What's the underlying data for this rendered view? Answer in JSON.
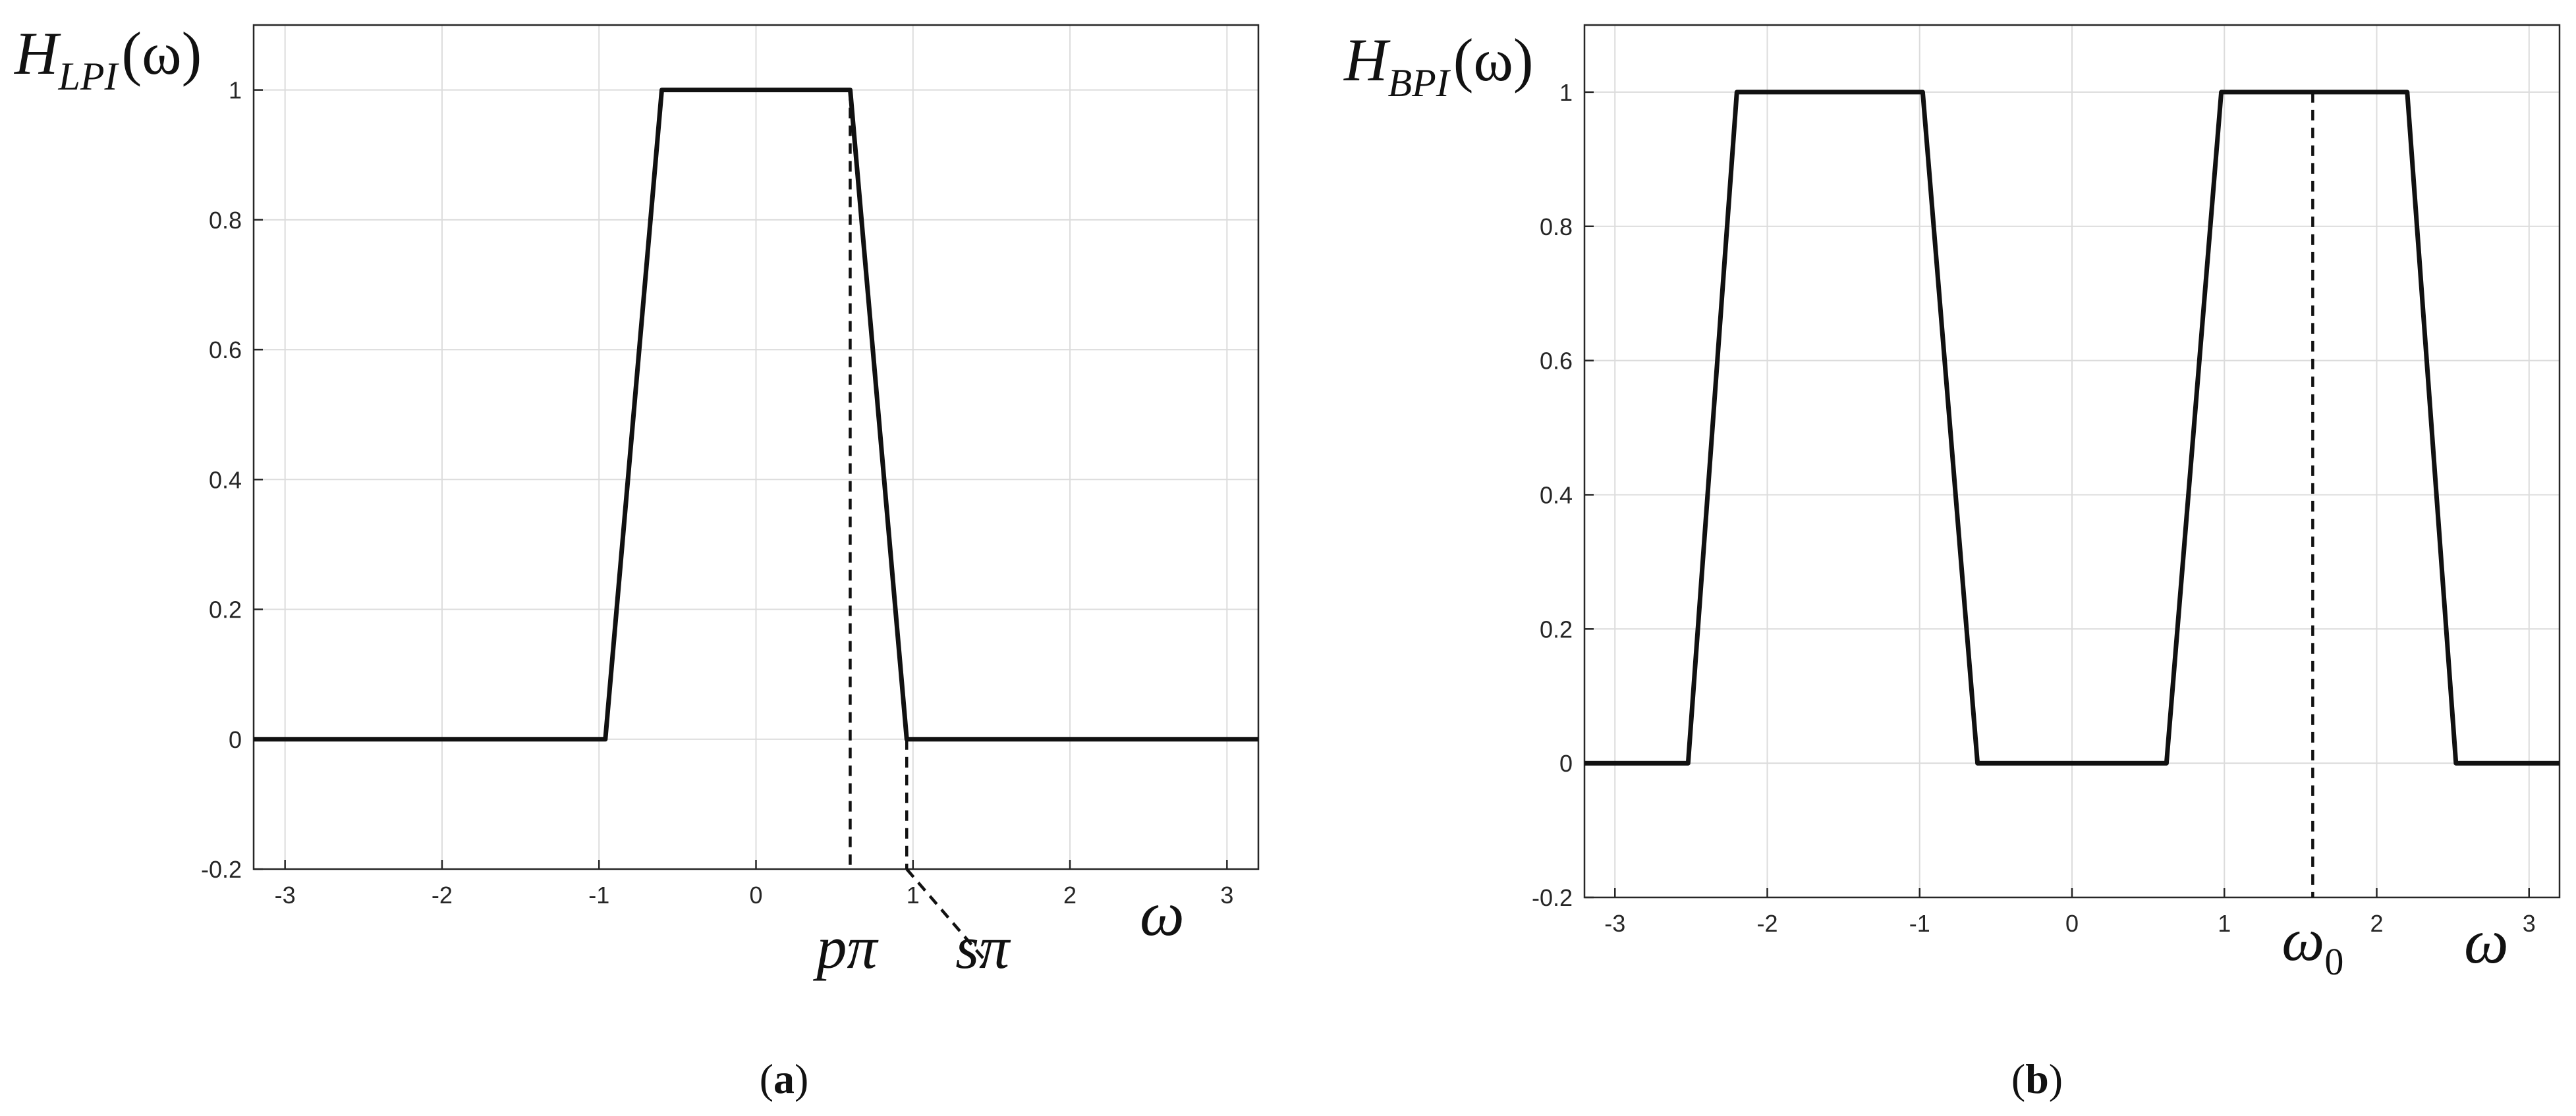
{
  "chart_data": [
    {
      "type": "line",
      "panel_label": "a",
      "ylabel": {
        "main": "H",
        "sub": "LPI",
        "arg": "(ω)"
      },
      "xlabel": "ω",
      "xlim": [
        -3.2,
        3.2
      ],
      "ylim": [
        -0.2,
        1.1
      ],
      "xticks": [
        -3,
        -2,
        -1,
        0,
        1,
        2,
        3
      ],
      "yticks": [
        -0.2,
        0,
        0.2,
        0.4,
        0.6,
        0.8,
        1
      ],
      "grid": true,
      "series": [
        {
          "x": [
            -3.2,
            -0.96,
            -0.6,
            0.6,
            0.96,
            3.2
          ],
          "y": [
            0,
            0,
            1,
            1,
            0,
            0
          ]
        }
      ],
      "annotations": [
        {
          "text": "pπ",
          "x": 0.6,
          "y_from": 1,
          "y_to": -0.2
        },
        {
          "text": "sπ",
          "x": 0.96,
          "y_from": 0,
          "y_to": -0.2
        }
      ]
    },
    {
      "type": "line",
      "panel_label": "b",
      "ylabel": {
        "main": "H",
        "sub": "BPI",
        "arg": "(ω)"
      },
      "xlabel": "ω",
      "xlim": [
        -3.2,
        3.2
      ],
      "ylim": [
        -0.2,
        1.1
      ],
      "xticks": [
        -3,
        -2,
        -1,
        0,
        1,
        2,
        3
      ],
      "yticks": [
        -0.2,
        0,
        0.2,
        0.4,
        0.6,
        0.8,
        1
      ],
      "grid": true,
      "series": [
        {
          "x": [
            -3.2,
            -2.52,
            -2.2,
            -0.98,
            -0.62,
            0.62,
            0.98,
            2.2,
            2.52,
            3.2
          ],
          "y": [
            0,
            0,
            1,
            1,
            0,
            0,
            1,
            1,
            0,
            0
          ]
        }
      ],
      "annotations": [
        {
          "text": "ω",
          "sub": "0",
          "x": 1.58,
          "y_from": 1,
          "y_to": -0.2
        }
      ]
    }
  ]
}
